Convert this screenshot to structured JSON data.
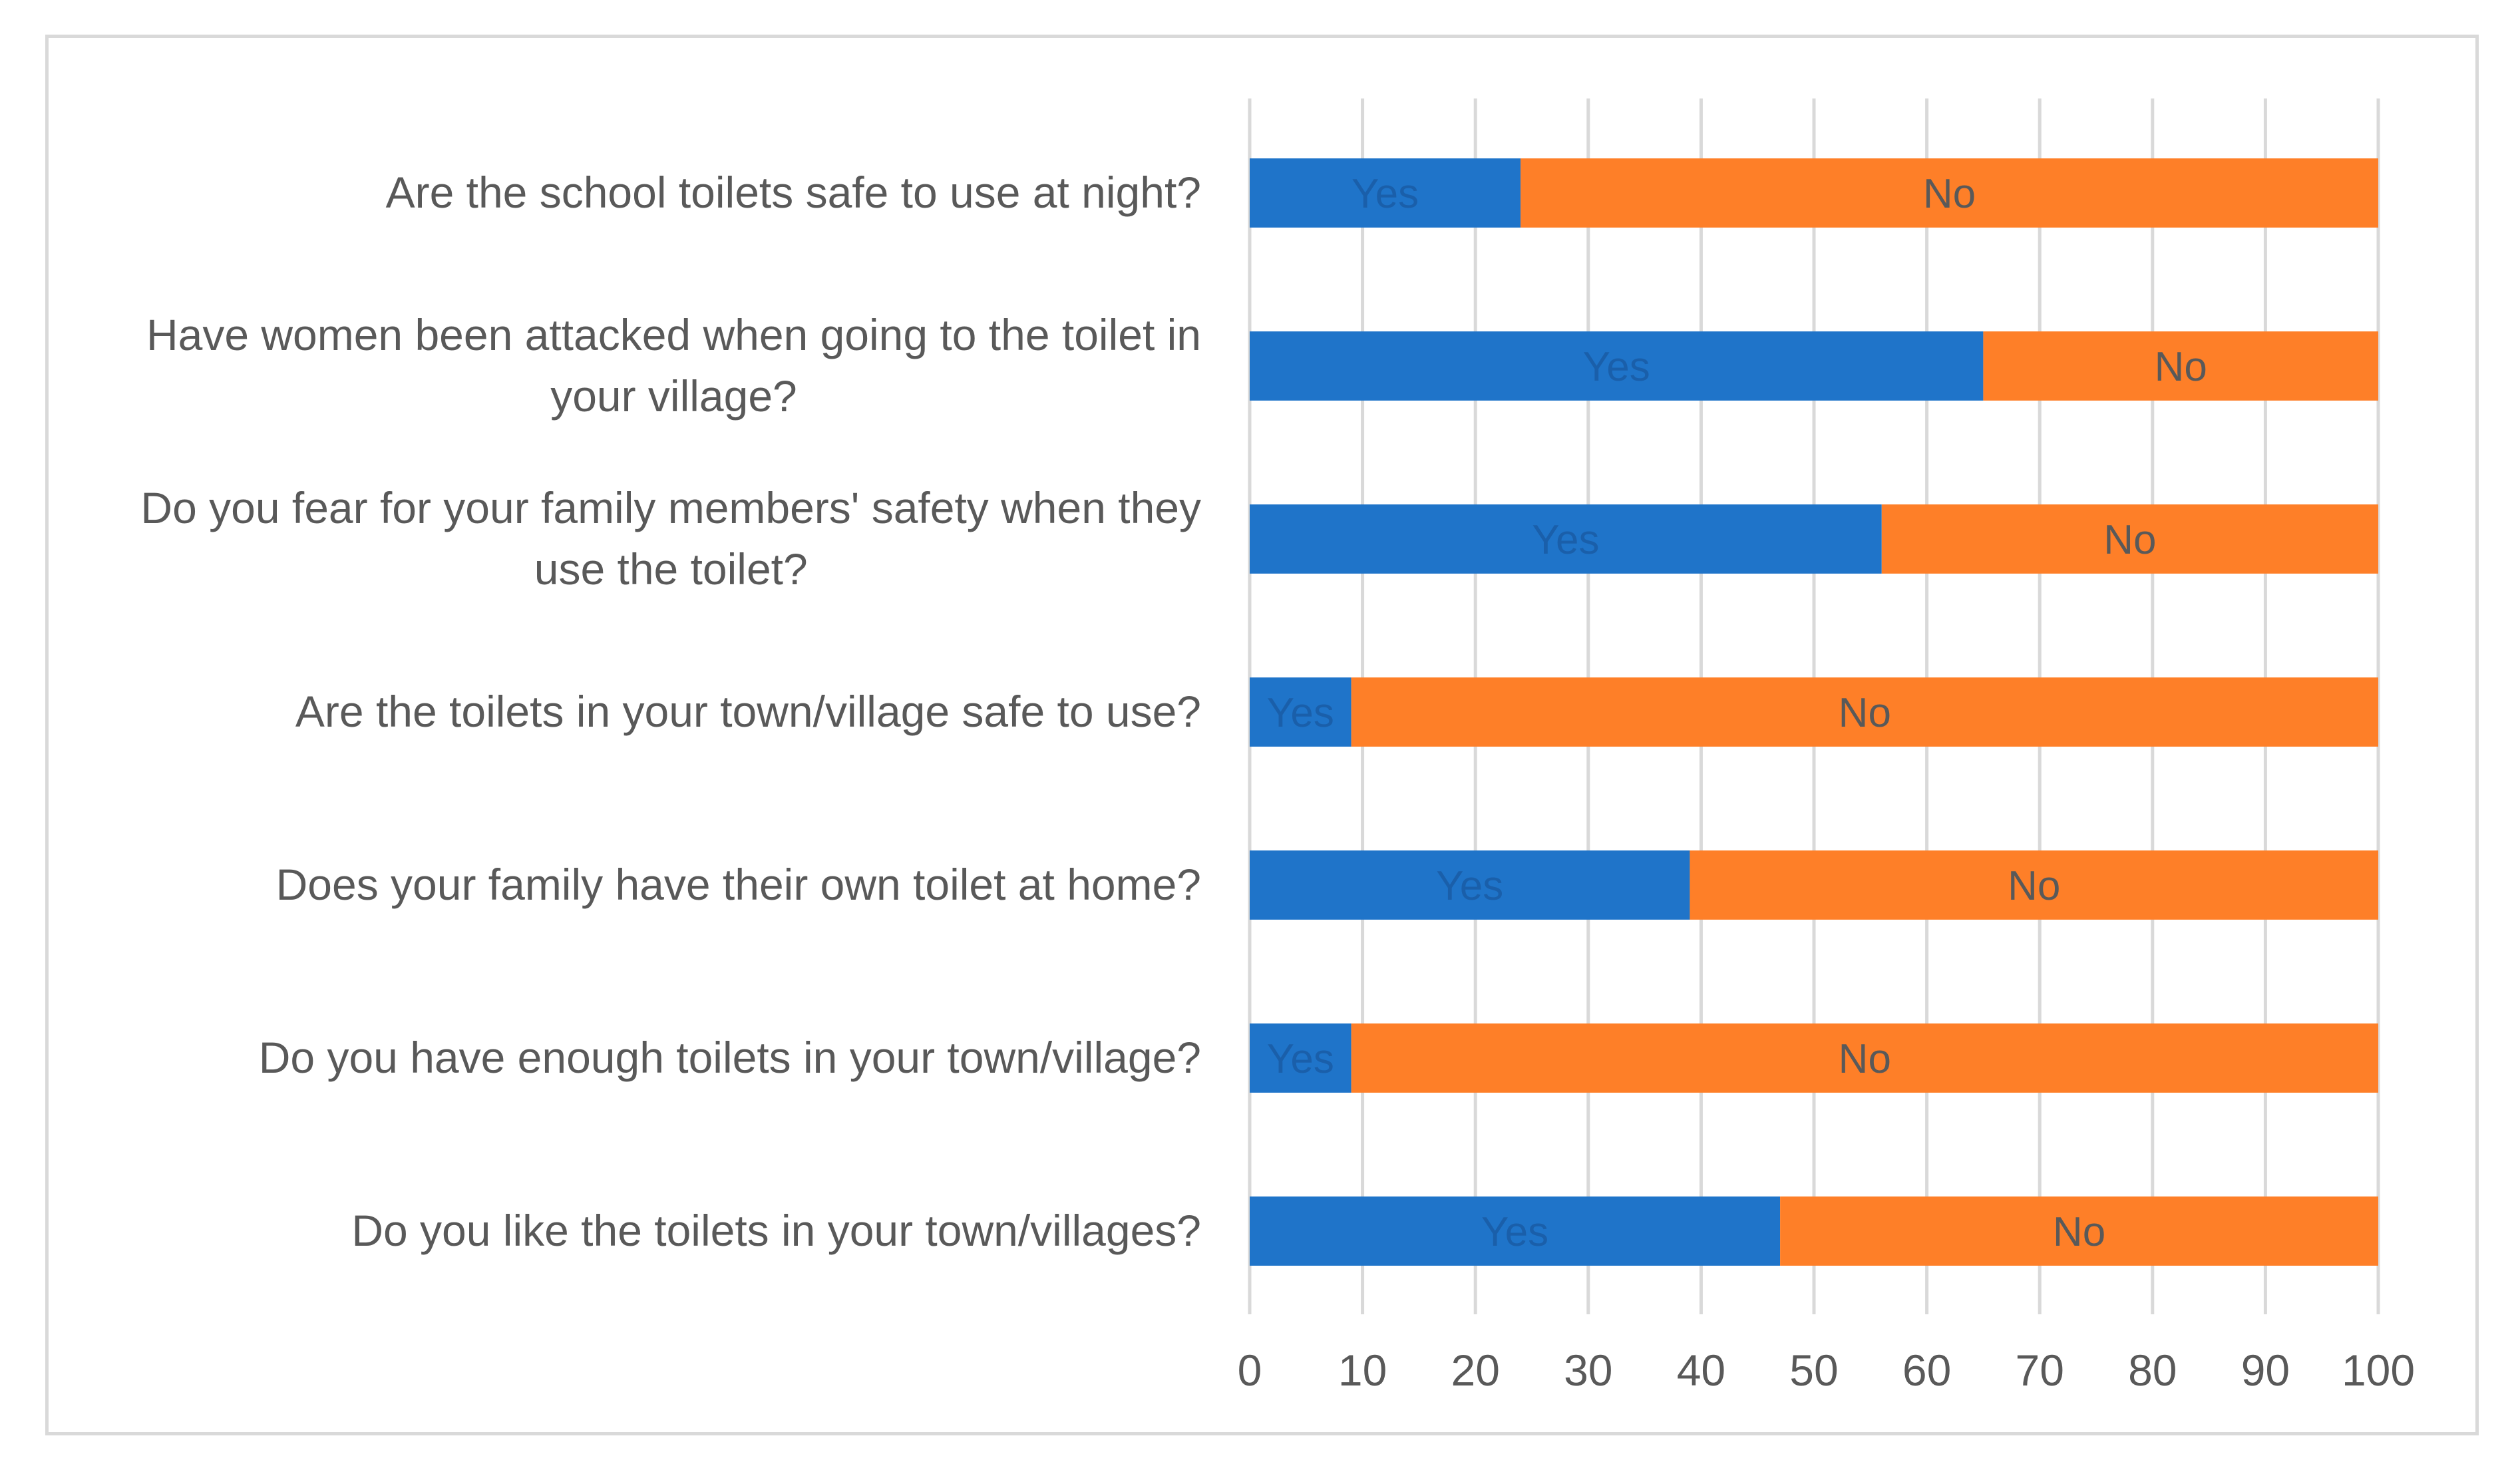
{
  "chart_data": {
    "type": "bar",
    "orientation": "horizontal",
    "stacked": true,
    "categories": [
      [
        "Are the school toilets safe to use at night?"
      ],
      [
        "Have women been attacked when going to the toilet in",
        "your village?"
      ],
      [
        "Do you fear for your family members' safety when they",
        "use the toilet?"
      ],
      [
        "Are the toilets in your town/village safe to use?"
      ],
      [
        "Does your family have their own toilet at home?"
      ],
      [
        "Do you have enough toilets in your town/village?"
      ],
      [
        "Do you like the toilets in your town/villages?"
      ]
    ],
    "series": [
      {
        "name": "Yes",
        "color": "#1f74c9",
        "label_color": "#1a5faa",
        "values": [
          24,
          65,
          56,
          9,
          39,
          9,
          47
        ]
      },
      {
        "name": "No",
        "color": "#fe7f28",
        "label_color": "#595959",
        "values": [
          76,
          35,
          44,
          91,
          61,
          91,
          53
        ]
      }
    ],
    "xlim": [
      0,
      100
    ],
    "xticks": [
      0,
      10,
      20,
      30,
      40,
      50,
      60,
      70,
      80,
      90,
      100
    ],
    "grid": true,
    "gridline_color": "#d9d9d9",
    "title": "",
    "xlabel": "",
    "ylabel": ""
  }
}
